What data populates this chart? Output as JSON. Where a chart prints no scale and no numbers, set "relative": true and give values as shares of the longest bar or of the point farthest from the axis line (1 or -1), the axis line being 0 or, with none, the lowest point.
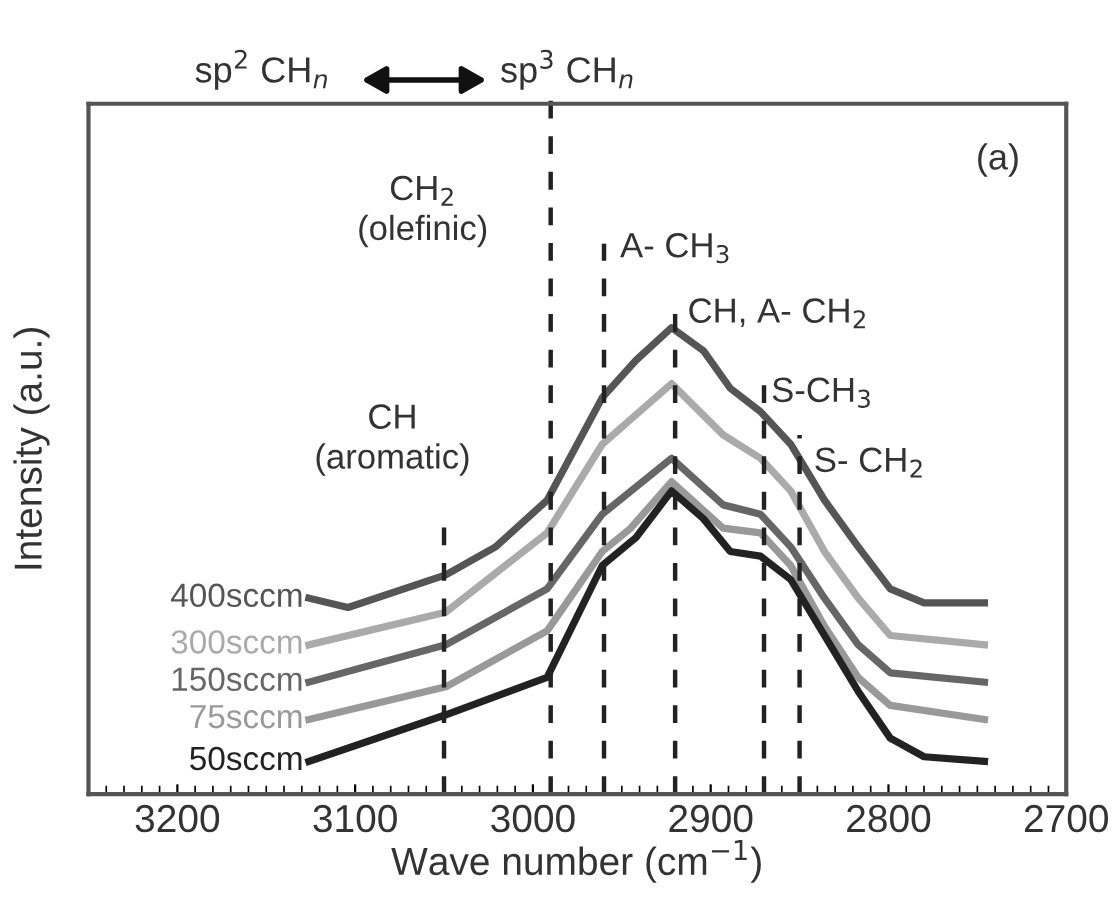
{
  "chart_data": {
    "type": "line",
    "relative": true,
    "xlabel": "Wave number (cm$^{−1}$)",
    "ylabel": "Intensity (a.u.)",
    "xlim": [
      3250,
      2700
    ],
    "xticks": [
      3200,
      3100,
      3000,
      2900,
      2800,
      2700
    ],
    "grid": false,
    "legend": false,
    "marker": "none",
    "line_style": "solid",
    "tick_labels": "x",
    "series": [
      {
        "name": "400sccm",
        "color": "#555555",
        "x": [
          3126,
          3104,
          3049,
          3021,
          2992,
          2961,
          2942,
          2922,
          2904,
          2889,
          2872,
          2855,
          2836,
          2817,
          2799,
          2780,
          2746
        ],
        "values": [
          0.42,
          0.4,
          0.47,
          0.53,
          0.63,
          0.85,
          0.93,
          1.0,
          0.95,
          0.87,
          0.82,
          0.75,
          0.63,
          0.53,
          0.44,
          0.41,
          0.41
        ]
      },
      {
        "name": "300sccm",
        "color": "#aaaaaa",
        "x": [
          3126,
          3049,
          2992,
          2961,
          2922,
          2893,
          2872,
          2855,
          2836,
          2817,
          2799,
          2746
        ],
        "values": [
          0.32,
          0.39,
          0.56,
          0.75,
          0.88,
          0.77,
          0.72,
          0.65,
          0.52,
          0.42,
          0.34,
          0.32
        ]
      },
      {
        "name": "150sccm",
        "color": "#666666",
        "x": [
          3126,
          3049,
          2992,
          2961,
          2922,
          2893,
          2872,
          2855,
          2836,
          2817,
          2799,
          2746
        ],
        "values": [
          0.24,
          0.32,
          0.44,
          0.6,
          0.72,
          0.62,
          0.6,
          0.53,
          0.42,
          0.32,
          0.26,
          0.24
        ]
      },
      {
        "name": "75sccm",
        "color": "#999999",
        "x": [
          3126,
          3049,
          2992,
          2961,
          2945,
          2922,
          2893,
          2872,
          2855,
          2836,
          2817,
          2799,
          2746
        ],
        "values": [
          0.16,
          0.23,
          0.35,
          0.52,
          0.57,
          0.67,
          0.57,
          0.56,
          0.49,
          0.36,
          0.25,
          0.19,
          0.16
        ]
      },
      {
        "name": "50sccm",
        "color": "#222222",
        "x": [
          3126,
          3049,
          2992,
          2961,
          2942,
          2922,
          2904,
          2889,
          2872,
          2855,
          2836,
          2817,
          2799,
          2780,
          2746
        ],
        "values": [
          0.07,
          0.17,
          0.25,
          0.49,
          0.55,
          0.65,
          0.59,
          0.52,
          0.51,
          0.46,
          0.34,
          0.22,
          0.12,
          0.08,
          0.07
        ]
      }
    ],
    "ref_lines": [
      {
        "axis": "x",
        "value": 3050,
        "label": "CH\n(aromatic)",
        "color": "#222222",
        "line_style": "dashed"
      },
      {
        "axis": "x",
        "value": 2990,
        "label": "CH$_{2}$\n(olefinic)",
        "color": "#222222",
        "line_style": "dashed"
      },
      {
        "axis": "x",
        "value": 2960,
        "label": "A- CH$_{3}$",
        "color": "#222222",
        "line_style": "dashed"
      },
      {
        "axis": "x",
        "value": 2920,
        "label": "CH, A- CH$_{2}$",
        "color": "#222222",
        "line_style": "dashed"
      },
      {
        "axis": "x",
        "value": 2870,
        "label": "S-CH$_{3}$",
        "color": "#222222",
        "line_style": "dashed"
      },
      {
        "axis": "x",
        "value": 2850,
        "label": "S- CH$_{2}$",
        "color": "#222222",
        "line_style": "dashed"
      }
    ],
    "annotations": [
      "sp$^{2}$ CH$_{n}$",
      "sp$^{3}$ CH$_{n}$",
      "(a)"
    ]
  }
}
